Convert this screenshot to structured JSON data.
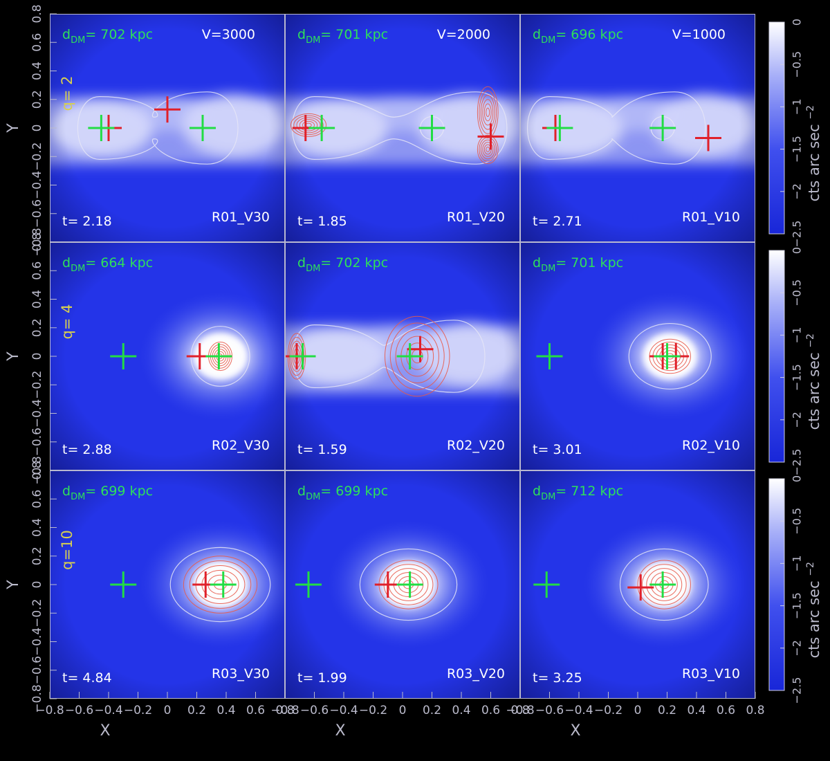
{
  "figure": {
    "x_axis_label": "X",
    "y_axis_label": "Y",
    "colorbar_label": "cts arc sec",
    "colorbar_exponent": "−2",
    "colorbar_ticks": [
      "0",
      "−0.5",
      "−1",
      "−1.5",
      "−2",
      "−2.5"
    ],
    "axis_ticks": [
      "−0.8",
      "−0.6",
      "−0.4",
      "−0.2",
      "0",
      "0.2",
      "0.4",
      "0.6",
      "0.8"
    ],
    "row_labels": [
      "q= 2",
      "q= 4",
      "q=10"
    ],
    "colors": {
      "background": "#000000",
      "panel_blue": "#2434e8",
      "gas_white": "#ffffff",
      "label_green": "#2ee05a",
      "label_yellow": "#d8d050",
      "cross_red": "#e0202a",
      "cross_green": "#22dd44",
      "contour_red": "#e85a4a",
      "contour_white": "#e6e6f6"
    },
    "icons": [
      "dm-peak-cross-green",
      "xray-peak-cross-red"
    ]
  },
  "chart_data": {
    "type": "heatmap",
    "description_units": "X, Y in Mpc; surface brightness in log cts arc sec^-2",
    "xlim": [
      -0.8,
      0.8
    ],
    "ylim": [
      -0.8,
      0.8
    ],
    "colorbar_range": [
      -2.5,
      0
    ],
    "panels": [
      {
        "name": "R01_V30",
        "row": 0,
        "col": 0,
        "d_dm": "702",
        "velocity": "V=3000",
        "time": "2.18",
        "morph": "streams",
        "red_cross": [
          [
            -0.4,
            0.0
          ],
          [
            0.0,
            0.13
          ]
        ],
        "green_cross": [
          [
            -0.45,
            0.0
          ],
          [
            0.24,
            0.0
          ]
        ],
        "contour_pair": [
          -0.46,
          0.27
        ],
        "red_contours": []
      },
      {
        "name": "R01_V20",
        "row": 0,
        "col": 1,
        "d_dm": "701",
        "velocity": "V=2000",
        "time": "1.85",
        "morph": "streams",
        "red_cross": [
          [
            -0.66,
            0.0
          ],
          [
            0.6,
            -0.06
          ]
        ],
        "green_cross": [
          [
            -0.55,
            0.0
          ],
          [
            0.2,
            0.0
          ]
        ],
        "contour_pair": [
          -0.6,
          0.5
        ],
        "red_contours": [
          [
            -0.64,
            0.02,
            0.12,
            0.08
          ],
          [
            0.58,
            0.11,
            0.07,
            0.18
          ],
          [
            0.58,
            -0.15,
            0.07,
            0.1
          ]
        ]
      },
      {
        "name": "R01_V10",
        "row": 0,
        "col": 2,
        "d_dm": "696",
        "velocity": "V=1000",
        "time": "2.71",
        "morph": "streams",
        "red_cross": [
          [
            -0.56,
            0.0
          ],
          [
            0.48,
            -0.07
          ]
        ],
        "green_cross": [
          [
            -0.53,
            0.0
          ],
          [
            0.17,
            0.0
          ]
        ],
        "contour_pair": [
          -0.6,
          0.25
        ],
        "red_contours": []
      },
      {
        "name": "R02_V30",
        "row": 1,
        "col": 0,
        "d_dm": "664",
        "velocity": "",
        "time": "2.88",
        "morph": "blob",
        "blob": [
          0.36,
          0.0
        ],
        "red_cross": [
          [
            0.22,
            0.0
          ]
        ],
        "green_cross": [
          [
            -0.3,
            0.0
          ],
          [
            0.35,
            0.0
          ]
        ],
        "contour_single": [
          0.36,
          0.0,
          0.2,
          0.21
        ],
        "red_contours": [
          [
            0.36,
            0.0,
            0.08,
            0.1
          ]
        ]
      },
      {
        "name": "R02_V20",
        "row": 1,
        "col": 1,
        "d_dm": "702",
        "velocity": "",
        "time": "1.59",
        "morph": "streams",
        "red_cross": [
          [
            -0.72,
            0.0
          ],
          [
            0.12,
            0.05
          ]
        ],
        "green_cross": [
          [
            -0.68,
            0.0
          ],
          [
            0.05,
            0.0
          ]
        ],
        "contour_pair": [
          -0.6,
          0.35
        ],
        "red_contours": [
          [
            -0.72,
            0.0,
            0.06,
            0.16
          ],
          [
            0.1,
            0.0,
            0.22,
            0.28
          ]
        ]
      },
      {
        "name": "R02_V10",
        "row": 1,
        "col": 2,
        "d_dm": "701",
        "velocity": "",
        "time": "3.01",
        "morph": "blob",
        "blob": [
          0.22,
          0.0
        ],
        "red_cross": [
          [
            0.17,
            0.0
          ],
          [
            0.26,
            0.0
          ]
        ],
        "green_cross": [
          [
            -0.6,
            0.0
          ],
          [
            0.2,
            0.0
          ]
        ],
        "contour_single": [
          0.22,
          0.0,
          0.28,
          0.23
        ],
        "red_contours": [
          [
            0.22,
            0.0,
            0.14,
            0.12
          ]
        ]
      },
      {
        "name": "R03_V30",
        "row": 2,
        "col": 0,
        "d_dm": "699",
        "velocity": "",
        "time": "4.84",
        "morph": "blob",
        "blob": [
          0.36,
          0.0
        ],
        "red_cross": [
          [
            0.26,
            0.0
          ]
        ],
        "green_cross": [
          [
            -0.3,
            0.0
          ],
          [
            0.38,
            0.0
          ]
        ],
        "contour_single": [
          0.36,
          0.0,
          0.34,
          0.26
        ],
        "red_contours": [
          [
            0.36,
            0.0,
            0.25,
            0.2
          ]
        ]
      },
      {
        "name": "R03_V20",
        "row": 2,
        "col": 1,
        "d_dm": "699",
        "velocity": "",
        "time": "1.99",
        "morph": "blob",
        "blob": [
          0.04,
          0.0
        ],
        "red_cross": [
          [
            -0.1,
            0.0
          ]
        ],
        "green_cross": [
          [
            -0.64,
            0.0
          ],
          [
            0.05,
            0.0
          ]
        ],
        "contour_single": [
          0.04,
          0.0,
          0.33,
          0.25
        ],
        "red_contours": [
          [
            0.04,
            0.0,
            0.2,
            0.17
          ]
        ]
      },
      {
        "name": "R03_V10",
        "row": 2,
        "col": 2,
        "d_dm": "712",
        "velocity": "",
        "time": "3.25",
        "morph": "blob",
        "blob": [
          0.18,
          0.0
        ],
        "red_cross": [
          [
            0.02,
            -0.02
          ]
        ],
        "green_cross": [
          [
            -0.62,
            0.0
          ],
          [
            0.17,
            0.0
          ]
        ],
        "contour_single": [
          0.18,
          0.0,
          0.3,
          0.25
        ],
        "red_contours": [
          [
            0.18,
            0.0,
            0.18,
            0.17
          ]
        ]
      }
    ]
  }
}
